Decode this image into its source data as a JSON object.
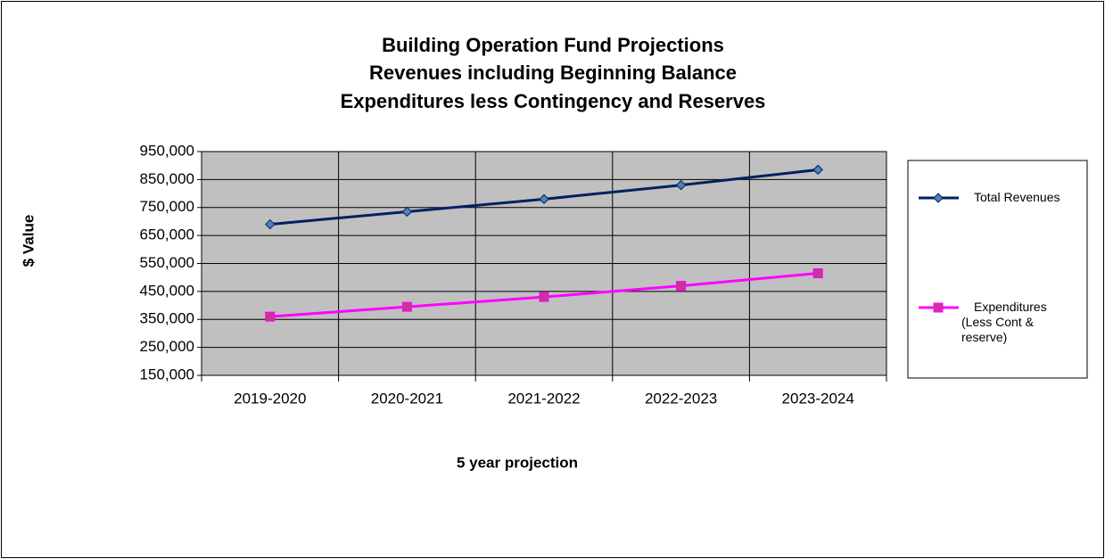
{
  "chart_data": {
    "type": "line",
    "title": [
      "Building Operation Fund Projections",
      "Revenues including Beginning Balance",
      "Expenditures less Contingency and Reserves"
    ],
    "x_label": "5 year projection",
    "y_label": "$ Value",
    "categories": [
      "2019-2020",
      "2020-2021",
      "2021-2022",
      "2022-2023",
      "2023-2024"
    ],
    "series": [
      {
        "name": "Total Revenues",
        "color": "#002060",
        "marker": "diamond",
        "marker_color": "#4f81bd",
        "values": [
          690000,
          735000,
          780000,
          830000,
          885000
        ]
      },
      {
        "name": "Expenditures (Less Cont & reserve)",
        "color": "#ff00ff",
        "marker": "square",
        "marker_color": "#cc3399",
        "values": [
          360000,
          395000,
          430000,
          470000,
          515000
        ]
      }
    ],
    "ylim": [
      150000,
      950000
    ],
    "yticks": [
      {
        "value": 150000,
        "label": "150,000"
      },
      {
        "value": 250000,
        "label": "250,000"
      },
      {
        "value": 350000,
        "label": "350,000"
      },
      {
        "value": 450000,
        "label": "450,000"
      },
      {
        "value": 550000,
        "label": "550,000"
      },
      {
        "value": 650000,
        "label": "650,000"
      },
      {
        "value": 750000,
        "label": "750,000"
      },
      {
        "value": 850000,
        "label": "850,000"
      },
      {
        "value": 950000,
        "label": "950,000"
      }
    ],
    "grid": true,
    "plot_background": "#c0c0c0",
    "legend": "right"
  }
}
